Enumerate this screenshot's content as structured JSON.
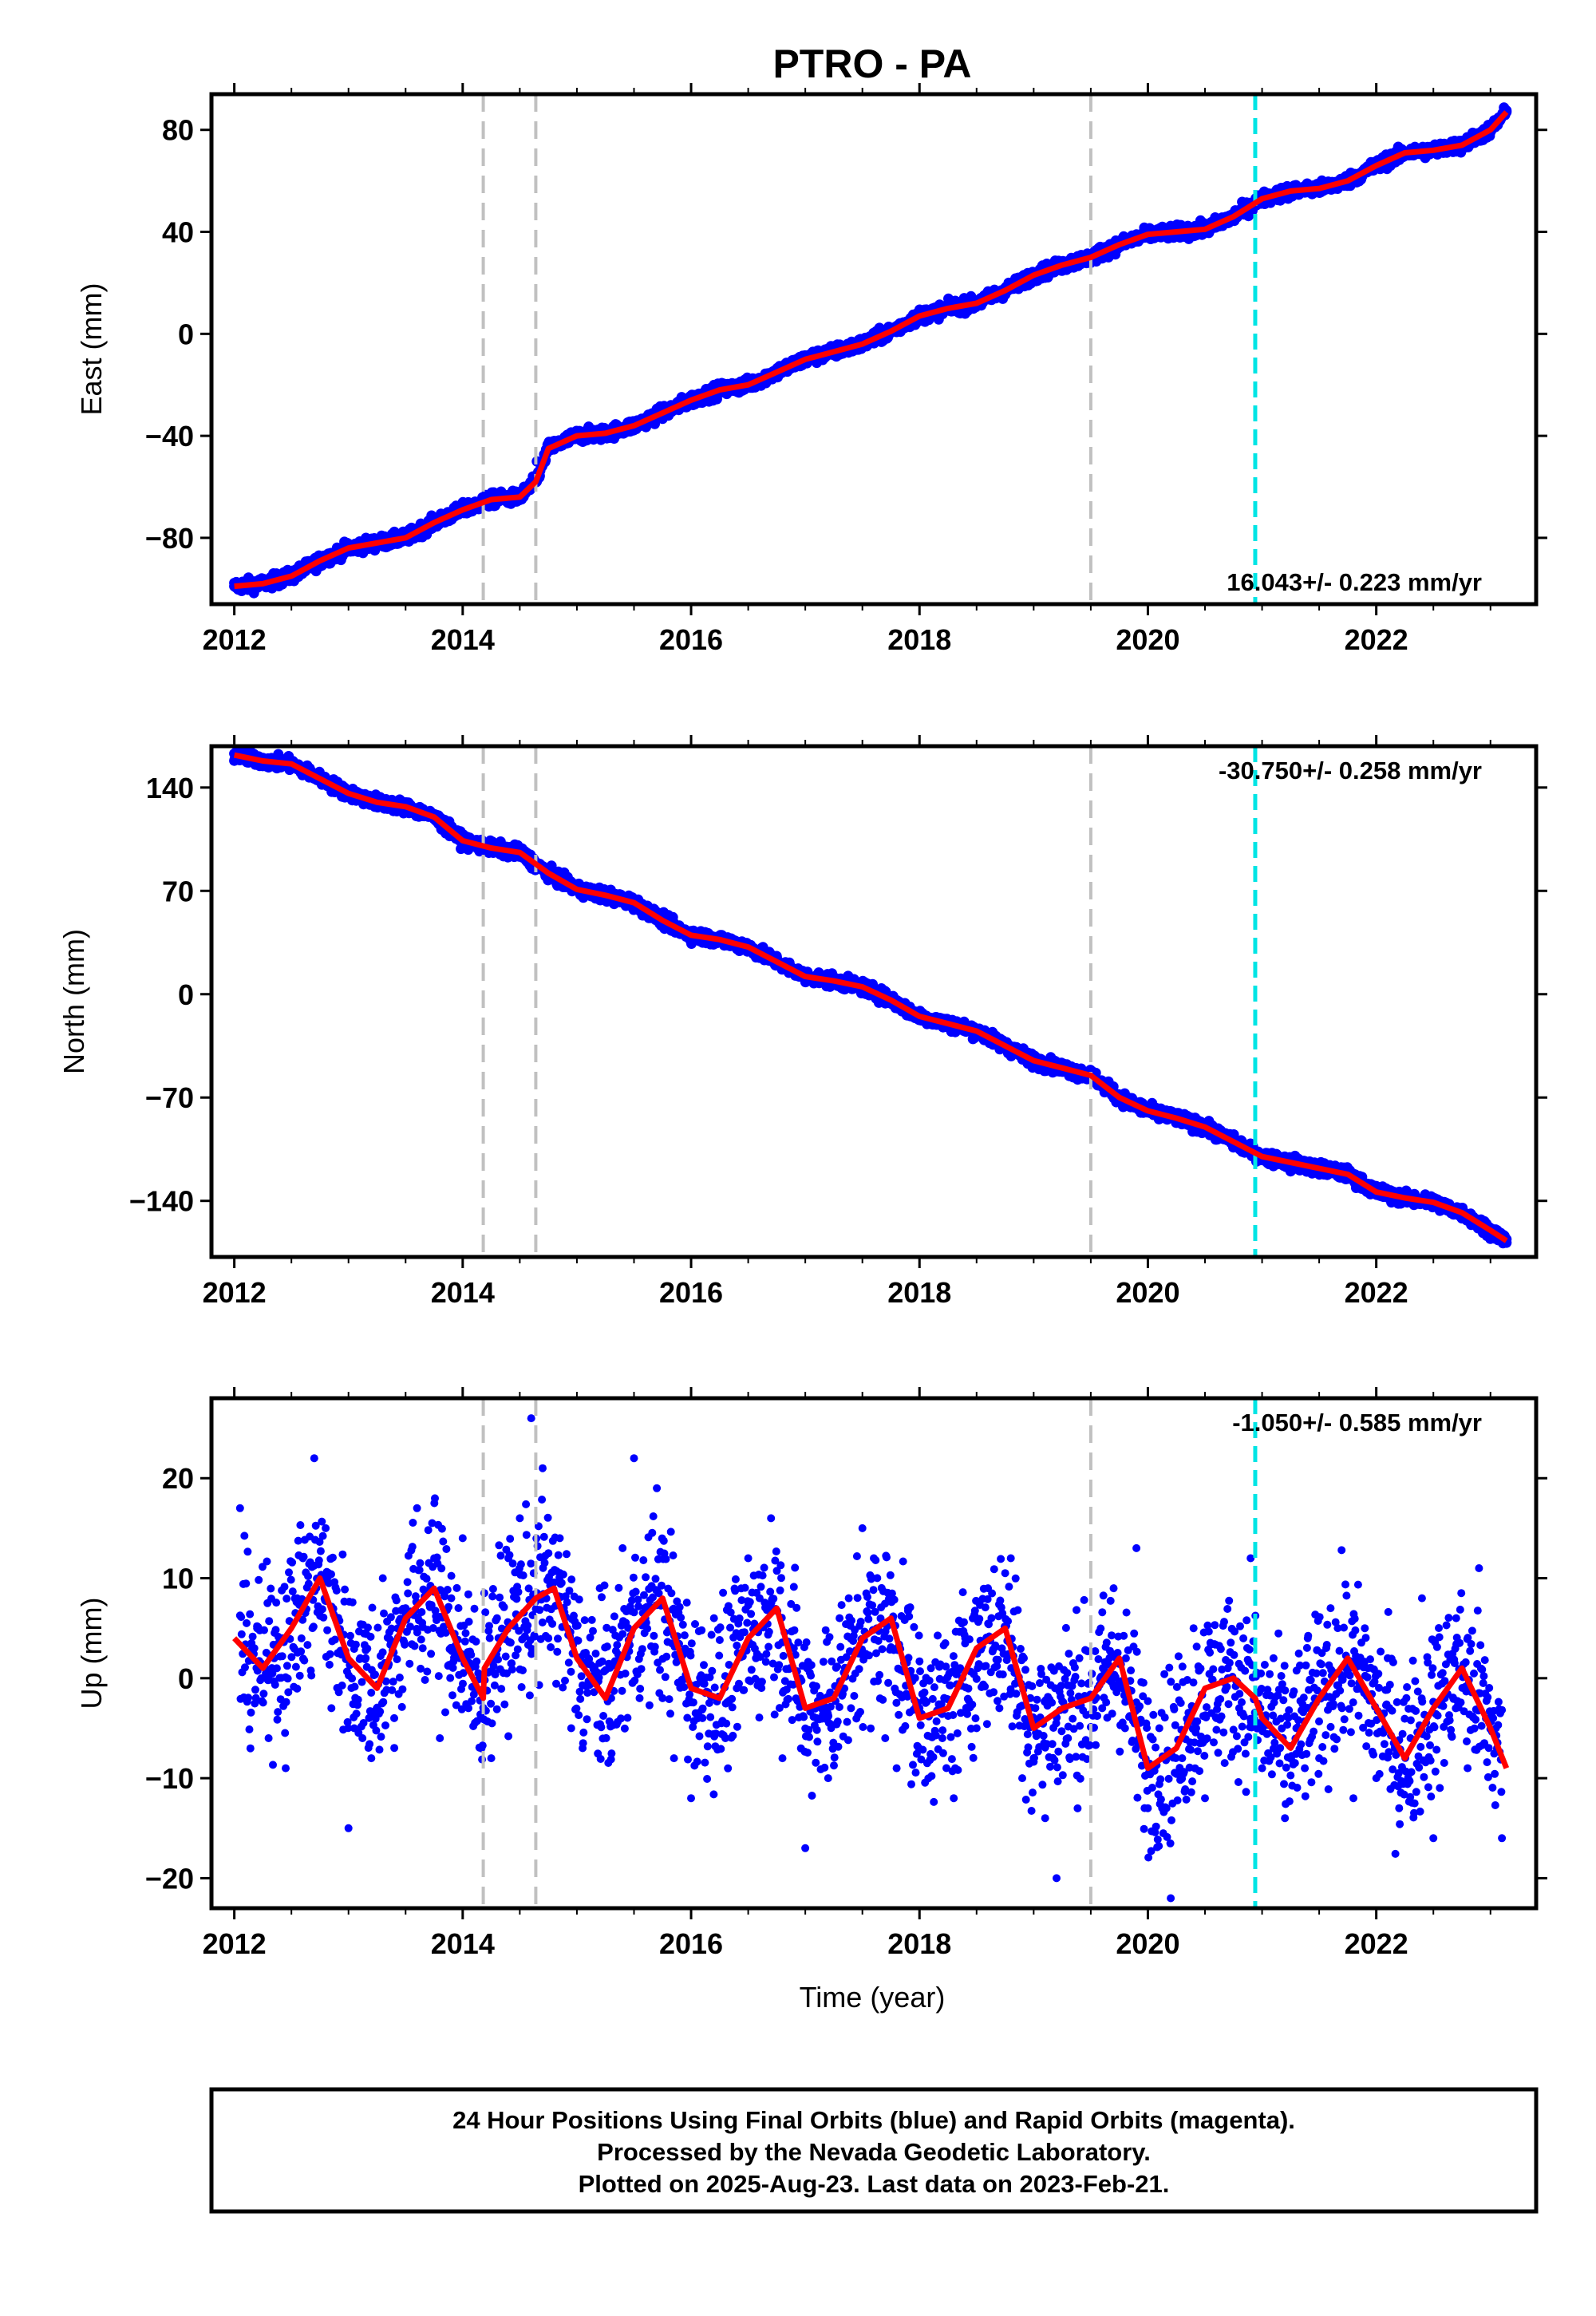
{
  "title": "PTRO - PA",
  "xlabel": "Time (year)",
  "footer": {
    "line1": "24 Hour Positions Using Final Orbits (blue) and Rapid Orbits (magenta).",
    "line2": "Processed by the Nevada Geodetic Laboratory.",
    "line3": "Plotted on 2025-Aug-23. Last data on 2023-Feb-21."
  },
  "colors": {
    "data": "#0000ff",
    "model": "#ff0000",
    "equipment_change": "#c0c0c0",
    "earthquake": "#00e5e5",
    "frame": "#000000"
  },
  "chart_data": [
    {
      "type": "scatter",
      "component": "East",
      "ylabel": "East (mm)",
      "xlim": [
        2011.8,
        2023.4
      ],
      "ylim": [
        -106,
        94
      ],
      "xticks": [
        2012,
        2014,
        2016,
        2018,
        2020,
        2022
      ],
      "yticks": [
        -80,
        -40,
        0,
        40,
        80
      ],
      "rate_label": "16.043+/- 0.223 mm/yr",
      "rate_position": "bottom-right",
      "vlines_gray": [
        2014.18,
        2014.64,
        2019.5
      ],
      "vlines_cyan": [
        2020.94
      ],
      "series": [
        {
          "kind": "observations",
          "x": [
            2012.0,
            2012.25,
            2012.5,
            2012.75,
            2013.0,
            2013.25,
            2013.5,
            2013.75,
            2014.0,
            2014.25,
            2014.5,
            2014.65,
            2014.75,
            2015.0,
            2015.25,
            2015.5,
            2015.75,
            2016.0,
            2016.25,
            2016.5,
            2016.75,
            2017.0,
            2017.25,
            2017.5,
            2017.75,
            2018.0,
            2018.25,
            2018.5,
            2018.75,
            2019.0,
            2019.25,
            2019.5,
            2019.75,
            2020.0,
            2020.25,
            2020.5,
            2020.75,
            2021.0,
            2021.25,
            2021.5,
            2021.75,
            2022.0,
            2022.25,
            2022.5,
            2022.75,
            2023.0,
            2023.14
          ],
          "y": [
            -99,
            -98,
            -94,
            -88,
            -83,
            -81,
            -80,
            -75,
            -69,
            -65,
            -64,
            -50,
            -43,
            -41,
            -40,
            -36,
            -31,
            -26,
            -21,
            -20,
            -14,
            -9,
            -7,
            -5,
            1,
            7,
            11,
            13,
            18,
            24,
            28,
            30,
            35,
            39,
            40,
            41,
            46,
            52,
            55,
            56,
            59,
            66,
            71,
            72,
            74,
            80,
            87
          ]
        },
        {
          "kind": "model",
          "x": [
            2012.0,
            2012.25,
            2012.5,
            2012.75,
            2013.0,
            2013.25,
            2013.5,
            2013.75,
            2014.0,
            2014.25,
            2014.5,
            2014.64,
            2014.75,
            2015.0,
            2015.25,
            2015.5,
            2015.75,
            2016.0,
            2016.25,
            2016.5,
            2016.75,
            2017.0,
            2017.25,
            2017.5,
            2017.75,
            2018.0,
            2018.25,
            2018.5,
            2018.75,
            2019.0,
            2019.25,
            2019.5,
            2019.75,
            2020.0,
            2020.25,
            2020.5,
            2020.75,
            2021.0,
            2021.25,
            2021.5,
            2021.75,
            2022.0,
            2022.25,
            2022.5,
            2022.75,
            2023.0,
            2023.14
          ],
          "y": [
            -99,
            -98,
            -95,
            -89,
            -84,
            -82,
            -80,
            -74,
            -69,
            -65,
            -64,
            -58,
            -45,
            -40,
            -39,
            -36,
            -31,
            -26,
            -22,
            -20,
            -15,
            -10,
            -7,
            -4,
            1,
            7,
            10,
            12,
            17,
            23,
            27,
            30,
            35,
            39,
            40,
            41,
            46,
            53,
            56,
            57,
            60,
            66,
            71,
            72,
            74,
            80,
            87
          ]
        }
      ]
    },
    {
      "type": "scatter",
      "component": "North",
      "ylabel": "North (mm)",
      "xlim": [
        2011.8,
        2023.4
      ],
      "ylim": [
        -178,
        168
      ],
      "xticks": [
        2012,
        2014,
        2016,
        2018,
        2020,
        2022
      ],
      "yticks": [
        -140,
        -70,
        0,
        70,
        140
      ],
      "rate_label": "-30.750+/- 0.258 mm/yr",
      "rate_position": "top-right",
      "vlines_gray": [
        2014.18,
        2014.64,
        2019.5
      ],
      "vlines_cyan": [
        2020.94
      ],
      "series": [
        {
          "kind": "observations",
          "x": [
            2012.0,
            2012.25,
            2012.5,
            2012.75,
            2013.0,
            2013.25,
            2013.5,
            2013.75,
            2014.0,
            2014.25,
            2014.5,
            2014.75,
            2015.0,
            2015.25,
            2015.5,
            2015.75,
            2016.0,
            2016.25,
            2016.5,
            2016.75,
            2017.0,
            2017.25,
            2017.5,
            2017.75,
            2018.0,
            2018.25,
            2018.5,
            2018.75,
            2019.0,
            2019.25,
            2019.5,
            2019.75,
            2020.0,
            2020.25,
            2020.5,
            2020.75,
            2021.0,
            2021.25,
            2021.5,
            2021.75,
            2022.0,
            2022.25,
            2022.5,
            2022.75,
            2023.0,
            2023.14
          ],
          "y": [
            163,
            160,
            157,
            148,
            138,
            130,
            128,
            122,
            106,
            100,
            96,
            84,
            72,
            68,
            63,
            52,
            40,
            37,
            33,
            25,
            12,
            10,
            6,
            -2,
            -14,
            -20,
            -25,
            -33,
            -44,
            -50,
            -55,
            -68,
            -78,
            -84,
            -88,
            -98,
            -112,
            -120,
            -122,
            -125,
            -130,
            -135,
            -138,
            -148,
            -160,
            -166
          ]
        },
        {
          "kind": "model",
          "x": [
            2012.0,
            2012.25,
            2012.5,
            2012.75,
            2013.0,
            2013.25,
            2013.5,
            2013.75,
            2014.0,
            2014.25,
            2014.5,
            2014.75,
            2015.0,
            2015.25,
            2015.5,
            2015.75,
            2016.0,
            2016.25,
            2016.5,
            2016.75,
            2017.0,
            2017.25,
            2017.5,
            2017.75,
            2018.0,
            2018.25,
            2018.5,
            2018.75,
            2019.0,
            2019.25,
            2019.5,
            2019.75,
            2020.0,
            2020.25,
            2020.5,
            2020.75,
            2021.0,
            2021.25,
            2021.5,
            2021.75,
            2022.0,
            2022.25,
            2022.5,
            2022.75,
            2023.0,
            2023.14
          ],
          "y": [
            162,
            158,
            156,
            146,
            136,
            130,
            127,
            120,
            104,
            99,
            96,
            82,
            71,
            67,
            62,
            50,
            40,
            37,
            32,
            22,
            12,
            9,
            5,
            -4,
            -15,
            -20,
            -25,
            -35,
            -45,
            -50,
            -55,
            -70,
            -79,
            -84,
            -90,
            -100,
            -110,
            -114,
            -118,
            -122,
            -134,
            -138,
            -141,
            -148,
            -160,
            -167
          ]
        }
      ]
    },
    {
      "type": "scatter",
      "component": "Up",
      "ylabel": "Up (mm)",
      "xlim": [
        2011.8,
        2023.4
      ],
      "ylim": [
        -23,
        28
      ],
      "xticks": [
        2012,
        2014,
        2016,
        2018,
        2020,
        2022
      ],
      "yticks": [
        -20,
        -10,
        0,
        10,
        20
      ],
      "rate_label": "-1.050+/- 0.585 mm/yr",
      "rate_position": "top-right",
      "vlines_gray": [
        2014.18,
        2014.64,
        2019.5
      ],
      "vlines_cyan": [
        2020.94
      ],
      "series": [
        {
          "kind": "observations",
          "x": [
            2012.05,
            2012.1,
            2012.2,
            2012.3,
            2012.35,
            2012.45,
            2012.55,
            2012.6,
            2012.7,
            2012.8,
            2012.85,
            2012.9,
            2013.0,
            2013.05,
            2013.15,
            2013.2,
            2013.3,
            2013.4,
            2013.5,
            2013.6,
            2013.65,
            2013.75,
            2013.8,
            2013.9,
            2014.0,
            2014.05,
            2014.15,
            2014.25,
            2014.3,
            2014.4,
            2014.5,
            2014.6,
            2014.7,
            2014.75,
            2014.85,
            2014.95,
            2015.05,
            2015.1,
            2015.2,
            2015.3,
            2015.4,
            2015.5,
            2015.6,
            2015.7,
            2015.75,
            2015.85,
            2016.0,
            2016.1,
            2016.2,
            2016.3,
            2016.4,
            2016.5,
            2016.6,
            2016.7,
            2016.8,
            2016.9,
            2017.0,
            2017.1,
            2017.2,
            2017.3,
            2017.4,
            2017.5,
            2017.6,
            2017.7,
            2017.8,
            2017.9,
            2018.0,
            2018.1,
            2018.2,
            2018.3,
            2018.4,
            2018.5,
            2018.6,
            2018.7,
            2018.8,
            2018.9,
            2019.0,
            2019.1,
            2019.2,
            2019.3,
            2019.4,
            2019.6,
            2019.7,
            2019.8,
            2019.9,
            2020.0,
            2020.1,
            2020.2,
            2020.3,
            2020.4,
            2020.5,
            2020.6,
            2020.7,
            2020.8,
            2020.9,
            2021.0,
            2021.1,
            2021.2,
            2021.3,
            2021.4,
            2021.5,
            2021.6,
            2021.7,
            2021.8,
            2021.9,
            2022.0,
            2022.1,
            2022.2,
            2022.3,
            2022.4,
            2022.5,
            2022.6,
            2022.7,
            2022.8,
            2022.9,
            2023.0,
            2023.1
          ],
          "y": [
            17,
            -2,
            5,
            -6,
            2,
            -9,
            8,
            12,
            22,
            15,
            -3,
            6,
            -15,
            -5,
            2,
            -8,
            10,
            -4,
            7,
            17,
            3,
            12,
            -6,
            8,
            14,
            -3,
            0,
            -8,
            6,
            12,
            16,
            26,
            21,
            4,
            14,
            -5,
            -7,
            2,
            9,
            -2,
            13,
            22,
            6,
            19,
            -2,
            -8,
            -12,
            -4,
            6,
            -6,
            -1,
            12,
            8,
            16,
            -8,
            3,
            -17,
            -4,
            -10,
            6,
            -3,
            15,
            12,
            -6,
            -9,
            7,
            -3,
            1,
            -6,
            -12,
            4,
            -5,
            9,
            -3,
            12,
            -10,
            -8,
            -14,
            -20,
            -6,
            2,
            -3,
            9,
            -5,
            13,
            -13,
            -5,
            -22,
            -8,
            5,
            -12,
            -4,
            1,
            -3,
            12,
            -9,
            2,
            -14,
            -5,
            4,
            -8,
            7,
            -3,
            -12,
            5,
            -10,
            2,
            -13,
            -6,
            8,
            -16,
            -2,
            6,
            -9,
            11,
            -4,
            -16
          ]
        },
        {
          "kind": "model",
          "x": [
            2012.0,
            2012.25,
            2012.5,
            2012.75,
            2013.0,
            2013.25,
            2013.5,
            2013.75,
            2014.0,
            2014.18,
            2014.19,
            2014.4,
            2014.64,
            2014.8,
            2015.0,
            2015.25,
            2015.5,
            2015.75,
            2016.0,
            2016.25,
            2016.5,
            2016.75,
            2017.0,
            2017.25,
            2017.5,
            2017.75,
            2018.0,
            2018.25,
            2018.5,
            2018.75,
            2019.0,
            2019.25,
            2019.5,
            2019.75,
            2020.0,
            2020.25,
            2020.5,
            2020.75,
            2020.94,
            2021.0,
            2021.25,
            2021.5,
            2021.75,
            2022.0,
            2022.25,
            2022.5,
            2022.75,
            2023.0,
            2023.14
          ],
          "y": [
            4,
            1,
            5,
            10,
            2,
            -1,
            6,
            9,
            2,
            -2,
            1,
            5,
            8,
            9,
            2,
            -2,
            5,
            8,
            -1,
            -2,
            4,
            7,
            -3,
            -2,
            4,
            6,
            -4,
            -3,
            3,
            5,
            -5,
            -3,
            -2,
            2,
            -9,
            -7,
            -1,
            0,
            -2,
            -4,
            -7,
            -2,
            2,
            -3,
            -8,
            -3,
            1,
            -5,
            -9
          ]
        }
      ]
    }
  ]
}
